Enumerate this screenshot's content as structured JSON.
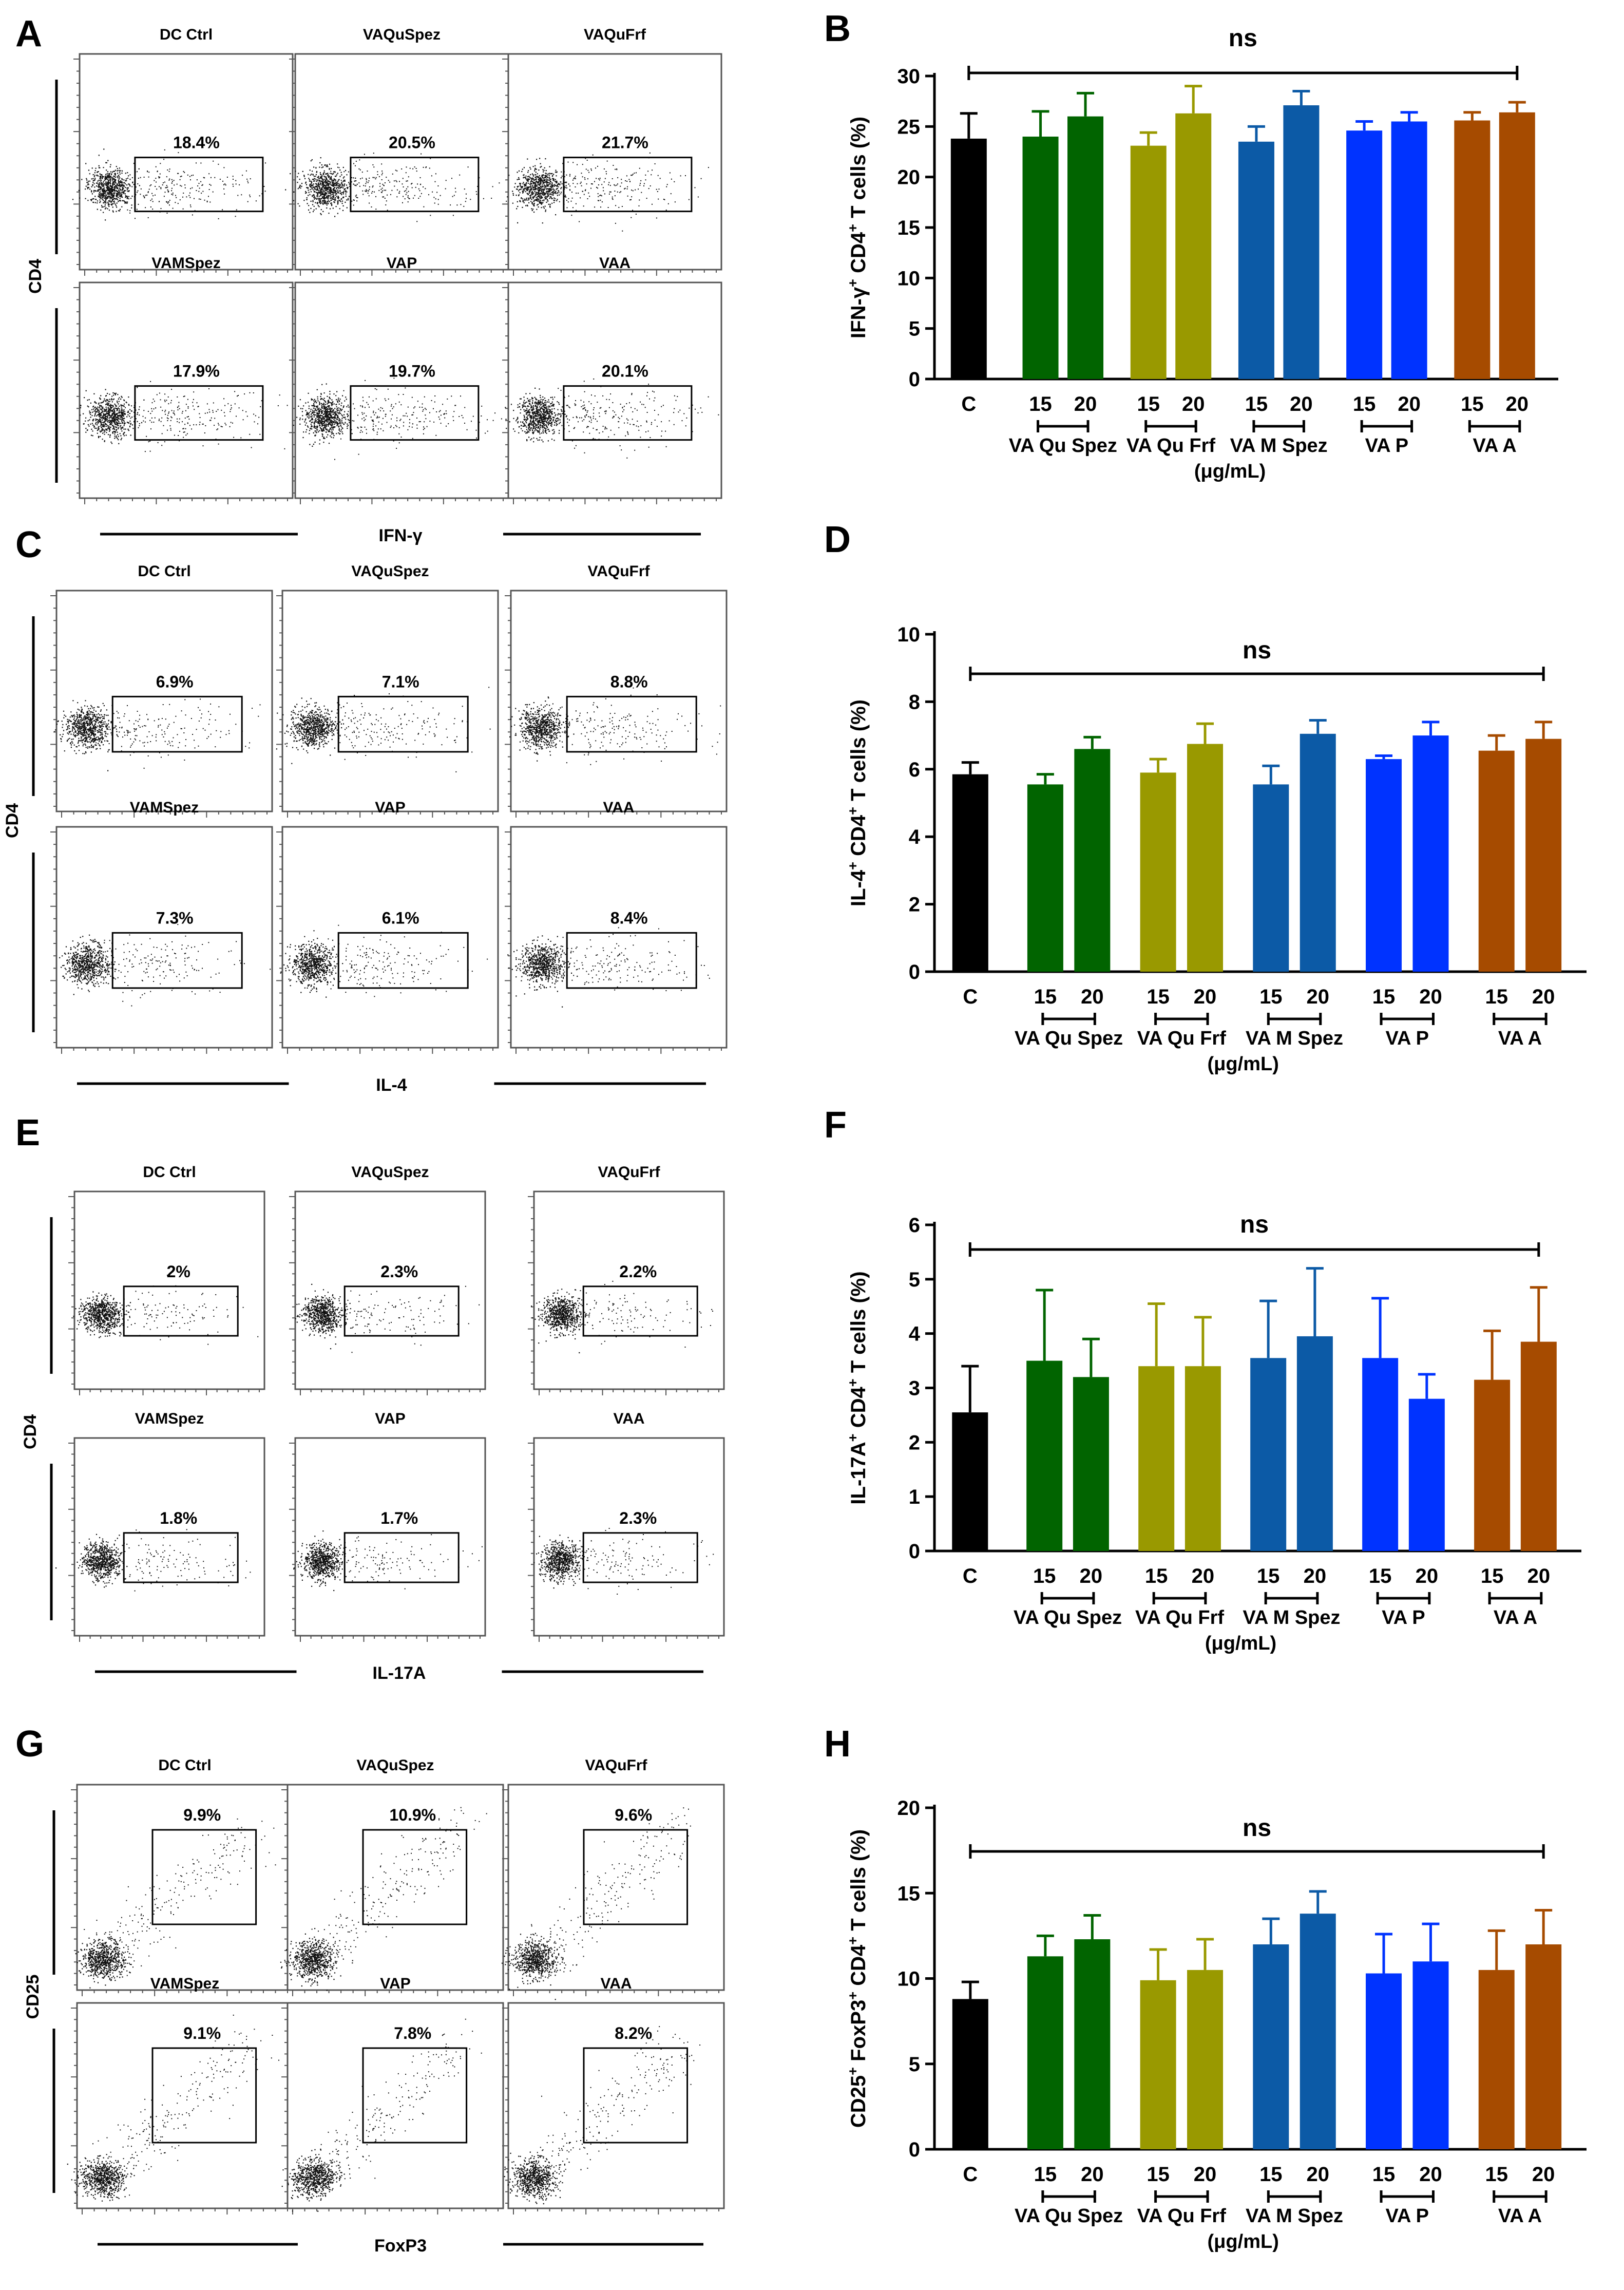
{
  "figure": {
    "colors": {
      "control": "#000000",
      "qu_spez": "#016400",
      "qu_frf": "#999900",
      "m_spez": "#0c5aa6",
      "p": "#0033ff",
      "a": "#a64b00"
    }
  },
  "chart_data": [
    {
      "panel": "A",
      "type": "scatter",
      "subtype": "flow-cytometry-dot-plots",
      "xlabel": "IFN-γ",
      "ylabel": "CD4",
      "plots": [
        {
          "title": "DC Ctrl",
          "percent": "18.4%"
        },
        {
          "title": "VAQuSpez",
          "percent": "20.5%"
        },
        {
          "title": "VAQuFrf",
          "percent": "21.7%"
        },
        {
          "title": "VAMSpez",
          "percent": "17.9%"
        },
        {
          "title": "VAP",
          "percent": "19.7%"
        },
        {
          "title": "VAA",
          "percent": "20.1%"
        }
      ]
    },
    {
      "panel": "B",
      "type": "bar",
      "ylabel": "IFN-γ⁺ CD4⁺ T cells (%)",
      "ylim": [
        0,
        30
      ],
      "yticks": [
        0,
        5,
        10,
        15,
        20,
        25,
        30
      ],
      "significance": "ns",
      "unit_label": "(μg/mL)",
      "group_labels": [
        "VA Qu Spez",
        "VA Qu Frf",
        "VA M Spez",
        "VA P",
        "VA A"
      ],
      "categories": [
        "C",
        "15",
        "20",
        "15",
        "20",
        "15",
        "20",
        "15",
        "20",
        "15",
        "20"
      ],
      "values": [
        23.8,
        24.0,
        26.0,
        23.1,
        26.3,
        23.5,
        27.1,
        24.6,
        25.5,
        25.6,
        26.4
      ],
      "errors": [
        2.5,
        2.5,
        2.3,
        1.3,
        2.7,
        1.5,
        1.4,
        0.9,
        0.9,
        0.8,
        1.0
      ]
    },
    {
      "panel": "C",
      "type": "scatter",
      "subtype": "flow-cytometry-dot-plots",
      "xlabel": "IL-4",
      "ylabel": "CD4",
      "plots": [
        {
          "title": "DC Ctrl",
          "percent": "6.9%"
        },
        {
          "title": "VAQuSpez",
          "percent": "7.1%"
        },
        {
          "title": "VAQuFrf",
          "percent": "8.8%"
        },
        {
          "title": "VAMSpez",
          "percent": "7.3%"
        },
        {
          "title": "VAP",
          "percent": "6.1%"
        },
        {
          "title": "VAA",
          "percent": "8.4%"
        }
      ]
    },
    {
      "panel": "D",
      "type": "bar",
      "ylabel": "IL-4⁺ CD4⁺ T cells (%)",
      "ylim": [
        0,
        10
      ],
      "yticks": [
        0,
        2,
        4,
        6,
        8,
        10
      ],
      "significance": "ns",
      "unit_label": "(μg/mL)",
      "group_labels": [
        "VA Qu Spez",
        "VA Qu Frf",
        "VA M Spez",
        "VA P",
        "VA A"
      ],
      "categories": [
        "C",
        "15",
        "20",
        "15",
        "20",
        "15",
        "20",
        "15",
        "20",
        "15",
        "20"
      ],
      "values": [
        5.85,
        5.55,
        6.6,
        5.9,
        6.75,
        5.55,
        7.05,
        6.3,
        7.0,
        6.55,
        6.9
      ],
      "errors": [
        0.35,
        0.3,
        0.35,
        0.4,
        0.6,
        0.55,
        0.4,
        0.1,
        0.4,
        0.45,
        0.5
      ]
    },
    {
      "panel": "E",
      "type": "scatter",
      "subtype": "flow-cytometry-dot-plots",
      "xlabel": "IL-17A",
      "ylabel": "CD4",
      "plots": [
        {
          "title": "DC Ctrl",
          "percent": "2%"
        },
        {
          "title": "VAQuSpez",
          "percent": "2.3%"
        },
        {
          "title": "VAQuFrf",
          "percent": "2.2%"
        },
        {
          "title": "VAMSpez",
          "percent": "1.8%"
        },
        {
          "title": "VAP",
          "percent": "1.7%"
        },
        {
          "title": "VAA",
          "percent": "2.3%"
        }
      ]
    },
    {
      "panel": "F",
      "type": "bar",
      "ylabel": "IL-17A⁺ CD4⁺ T cells (%)",
      "ylim": [
        0,
        6
      ],
      "yticks": [
        0,
        1,
        2,
        3,
        4,
        5,
        6
      ],
      "significance": "ns",
      "unit_label": "(μg/mL)",
      "group_labels": [
        "VA Qu Spez",
        "VA Qu Frf",
        "VA M Spez",
        "VA P",
        "VA A"
      ],
      "categories": [
        "C",
        "15",
        "20",
        "15",
        "20",
        "15",
        "20",
        "15",
        "20",
        "15",
        "20"
      ],
      "values": [
        2.55,
        3.5,
        3.2,
        3.4,
        3.4,
        3.55,
        3.95,
        3.55,
        2.8,
        3.15,
        3.85
      ],
      "errors": [
        0.85,
        1.3,
        0.7,
        1.15,
        0.9,
        1.05,
        1.25,
        1.1,
        0.45,
        0.9,
        1.0
      ]
    },
    {
      "panel": "G",
      "type": "scatter",
      "subtype": "flow-cytometry-dot-plots",
      "xlabel": "FoxP3",
      "ylabel": "CD25",
      "plots": [
        {
          "title": "DC Ctrl",
          "percent": "9.9%"
        },
        {
          "title": "VAQuSpez",
          "percent": "10.9%"
        },
        {
          "title": "VAQuFrf",
          "percent": "9.6%"
        },
        {
          "title": "VAMSpez",
          "percent": "9.1%"
        },
        {
          "title": "VAP",
          "percent": "7.8%"
        },
        {
          "title": "VAA",
          "percent": "8.2%"
        }
      ]
    },
    {
      "panel": "H",
      "type": "bar",
      "ylabel": "CD25⁺ FoxP3⁺ CD4⁺ T cells (%)",
      "ylim": [
        0,
        20
      ],
      "yticks": [
        0,
        5,
        10,
        15,
        20
      ],
      "significance": "ns",
      "unit_label": "(μg/mL)",
      "group_labels": [
        "VA Qu Spez",
        "VA Qu Frf",
        "VA M Spez",
        "VA P",
        "VA A"
      ],
      "categories": [
        "C",
        "15",
        "20",
        "15",
        "20",
        "15",
        "20",
        "15",
        "20",
        "15",
        "20"
      ],
      "values": [
        8.8,
        11.3,
        12.3,
        9.9,
        10.5,
        12.0,
        13.8,
        10.3,
        11.0,
        10.5,
        12.0
      ],
      "errors": [
        1.0,
        1.2,
        1.4,
        1.8,
        1.8,
        1.5,
        1.3,
        2.3,
        2.2,
        2.3,
        2.0
      ]
    }
  ]
}
